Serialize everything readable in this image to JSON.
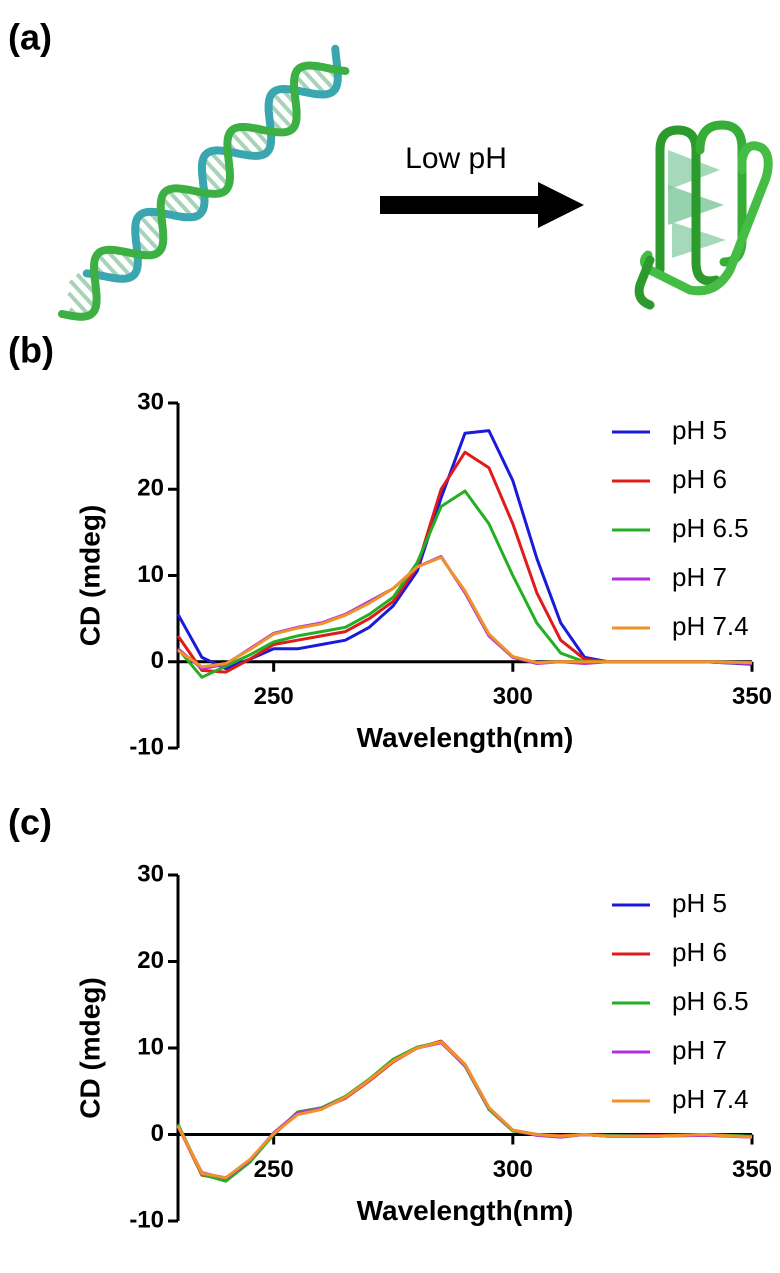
{
  "panel_a": {
    "label": "(a)",
    "arrow_label": "Low pH"
  },
  "chart_data": [
    {
      "type": "line",
      "panel_label": "(b)",
      "xlabel": "Wavelength(nm)",
      "ylabel": "CD (mdeg)",
      "xlim": [
        230,
        350
      ],
      "ylim": [
        -10,
        30
      ],
      "xticks": [
        250,
        300,
        350
      ],
      "yticks": [
        -10,
        0,
        10,
        20,
        30
      ],
      "legend": "upper right",
      "x": [
        230,
        235,
        240,
        245,
        250,
        255,
        260,
        265,
        270,
        275,
        280,
        285,
        290,
        295,
        300,
        305,
        310,
        315,
        320,
        330,
        340,
        350
      ],
      "series": [
        {
          "name": "pH 5",
          "color": "#1a1adb",
          "values": [
            5.5,
            0.5,
            -0.8,
            0.3,
            1.5,
            1.5,
            2,
            2.5,
            4,
            6.5,
            10.5,
            19,
            26.5,
            26.8,
            21,
            12,
            4.5,
            0.5,
            0,
            0,
            0,
            -0.3
          ]
        },
        {
          "name": "pH 6",
          "color": "#e01b1b",
          "values": [
            3,
            -1,
            -1.2,
            0.3,
            2,
            2.5,
            3,
            3.5,
            5,
            7,
            11,
            20,
            24.3,
            22.5,
            16,
            8,
            2.5,
            0.3,
            0,
            0,
            0,
            -0.2
          ]
        },
        {
          "name": "pH 6.5",
          "color": "#22b022",
          "values": [
            1.5,
            -1.8,
            -0.5,
            0.8,
            2.3,
            3,
            3.5,
            4,
            5.5,
            7.5,
            11.5,
            18,
            19.8,
            16,
            10,
            4.5,
            1,
            0,
            0,
            0,
            0,
            -0.2
          ]
        },
        {
          "name": "pH 7",
          "color": "#b030e0",
          "values": [
            1.5,
            -0.8,
            -0.3,
            1.5,
            3.3,
            4,
            4.5,
            5.5,
            7,
            8.5,
            11,
            12.2,
            8,
            3,
            0.5,
            -0.2,
            0,
            -0.2,
            0,
            0,
            0,
            -0.2
          ]
        },
        {
          "name": "pH 7.4",
          "color": "#f0922a",
          "values": [
            1.3,
            -0.6,
            -0.2,
            1.4,
            3.2,
            3.9,
            4.4,
            5.4,
            6.8,
            8.5,
            11,
            12.1,
            8.2,
            3.2,
            0.6,
            -0.1,
            0,
            0,
            0,
            0,
            0,
            -0.1
          ]
        }
      ]
    },
    {
      "type": "line",
      "panel_label": "(c)",
      "xlabel": "Wavelength(nm)",
      "ylabel": "CD (mdeg)",
      "xlim": [
        230,
        350
      ],
      "ylim": [
        -10,
        30
      ],
      "xticks": [
        250,
        300,
        350
      ],
      "yticks": [
        -10,
        0,
        10,
        20,
        30
      ],
      "legend": "upper right",
      "x": [
        230,
        235,
        240,
        245,
        250,
        255,
        260,
        265,
        270,
        275,
        280,
        285,
        290,
        295,
        300,
        305,
        310,
        315,
        320,
        330,
        340,
        350
      ],
      "series": [
        {
          "name": "pH 5",
          "color": "#1a1adb",
          "values": [
            1,
            -4.5,
            -5,
            -3,
            0,
            2.5,
            3,
            4.3,
            6.3,
            8.5,
            10,
            10.7,
            8,
            3,
            0.5,
            0,
            -0.2,
            0,
            -0.2,
            -0.2,
            0,
            -0.3
          ]
        },
        {
          "name": "pH 6",
          "color": "#e01b1b",
          "values": [
            1,
            -4.7,
            -5.2,
            -3.1,
            0.1,
            2.4,
            3,
            4.2,
            6.2,
            8.4,
            10,
            10.8,
            8.1,
            3.1,
            0.5,
            0,
            -0.1,
            0,
            -0.2,
            -0.1,
            0,
            -0.2
          ]
        },
        {
          "name": "pH 6.5",
          "color": "#22b022",
          "values": [
            1.2,
            -4.6,
            -5.4,
            -3.2,
            0,
            2.6,
            3.1,
            4.4,
            6.4,
            8.7,
            10.1,
            10.7,
            7.9,
            2.9,
            0.4,
            0,
            -0.2,
            0,
            -0.1,
            -0.2,
            0,
            -0.2
          ]
        },
        {
          "name": "pH 7",
          "color": "#b030e0",
          "values": [
            0.9,
            -4.4,
            -5.1,
            -3,
            0.2,
            2.5,
            3,
            4.3,
            6.3,
            8.5,
            10,
            10.6,
            8,
            3,
            0.5,
            -0.1,
            -0.3,
            0,
            -0.2,
            -0.2,
            -0.1,
            -0.3
          ]
        },
        {
          "name": "pH 7.4",
          "color": "#f0922a",
          "values": [
            1,
            -4.5,
            -5,
            -2.9,
            0.1,
            2.3,
            2.9,
            4.3,
            6.3,
            8.5,
            10,
            10.7,
            8.1,
            3.1,
            0.5,
            0,
            -0.2,
            0,
            -0.2,
            -0.2,
            0,
            -0.3
          ]
        }
      ]
    }
  ]
}
